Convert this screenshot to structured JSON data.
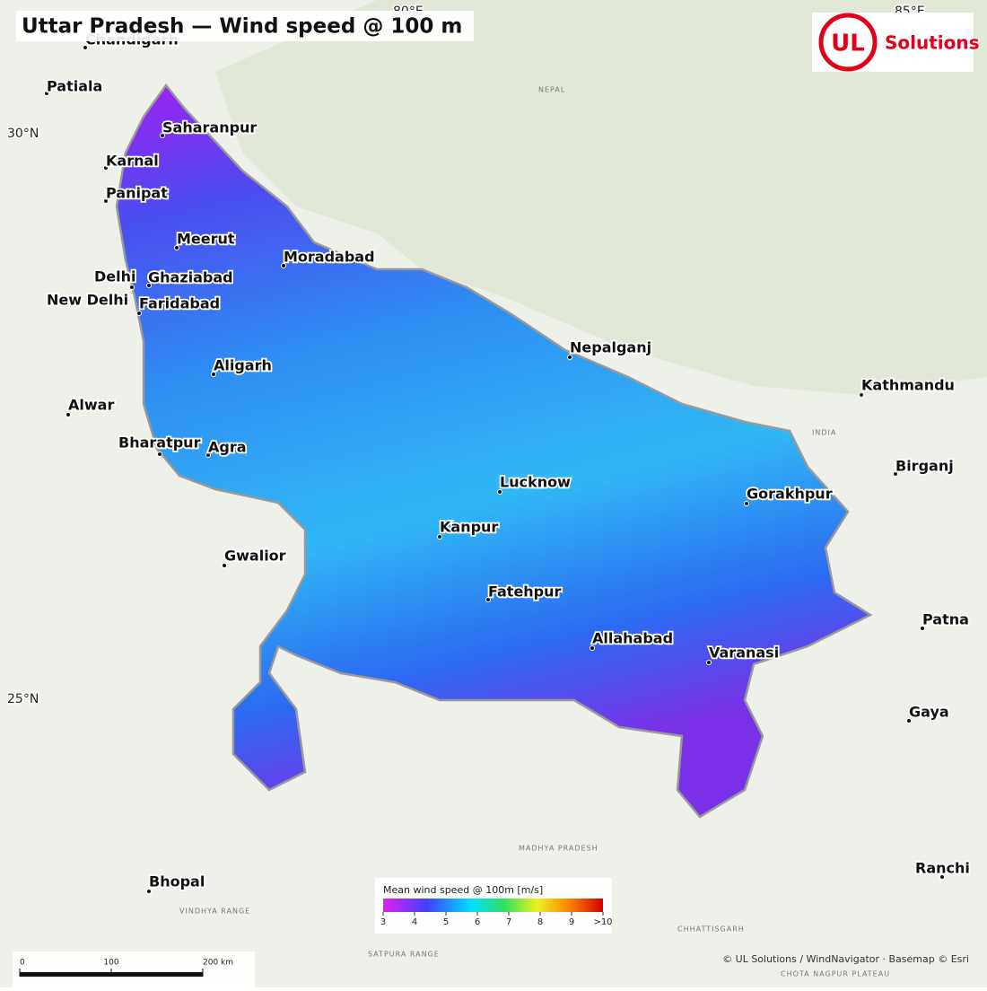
{
  "title": "Uttar Pradesh — Wind speed @ 100 m",
  "logo": {
    "mark": "UL",
    "text": "Solutions"
  },
  "graticule": [
    "80°E",
    "85°E",
    "30°N",
    "25°N"
  ],
  "cities": [
    {
      "name": "Chandigarh"
    },
    {
      "name": "Patiala"
    },
    {
      "name": "Saharanpur"
    },
    {
      "name": "Karnal"
    },
    {
      "name": "Panipat"
    },
    {
      "name": "Meerut"
    },
    {
      "name": "Delhi"
    },
    {
      "name": "Ghaziabad"
    },
    {
      "name": "New Delhi"
    },
    {
      "name": "Faridabad"
    },
    {
      "name": "Moradabad"
    },
    {
      "name": "Aligarh"
    },
    {
      "name": "Alwar"
    },
    {
      "name": "Bharatpur"
    },
    {
      "name": "Agra"
    },
    {
      "name": "Gwalior"
    },
    {
      "name": "Lucknow"
    },
    {
      "name": "Kanpur"
    },
    {
      "name": "Fatehpur"
    },
    {
      "name": "Allahabad"
    },
    {
      "name": "Varanasi"
    },
    {
      "name": "Gorakhpur"
    },
    {
      "name": "Nepalganj"
    },
    {
      "name": "Kathmandu"
    },
    {
      "name": "Birganj"
    },
    {
      "name": "Patna"
    },
    {
      "name": "Gaya"
    },
    {
      "name": "Ranchi"
    },
    {
      "name": "Bhopal"
    }
  ],
  "regions": [
    "NEPAL",
    "INDIA",
    "MADHYA PRADESH",
    "VINDHYA RANGE",
    "SATPURA RANGE",
    "CHHATTISGARH",
    "CHOTA NAGPUR PLATEAU"
  ],
  "legend": {
    "title": "Mean wind speed @ 100m  [m/s]",
    "range": [
      3,
      10
    ],
    "ticks": [
      3,
      4,
      5,
      6,
      7,
      8,
      9,
      {
        "value": 10,
        "label": ">10"
      }
    ]
  },
  "scalebar": {
    "range": [
      0,
      200
    ],
    "ticks": [
      0,
      100,
      {
        "value": 200,
        "label": "200 km"
      }
    ]
  },
  "attribution": "© UL Solutions / WindNavigator · Basemap © Esri"
}
